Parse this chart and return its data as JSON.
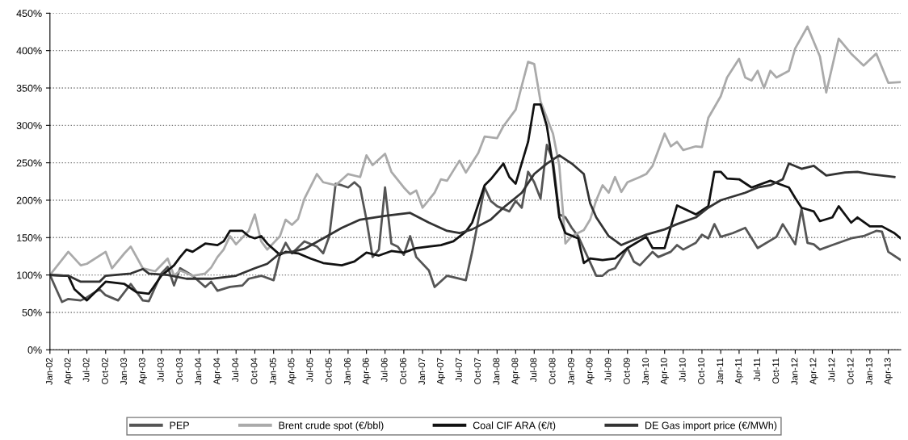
{
  "chart_data": {
    "type": "line",
    "ylim": [
      0,
      450
    ],
    "xlim": [
      "2002-01",
      "2013-06"
    ],
    "grid": "y",
    "legend": "bottom",
    "line_style": "solid",
    "marker": "none",
    "yticks": [
      {
        "value": 0,
        "label": "0%"
      },
      {
        "value": 50,
        "label": "50%"
      },
      {
        "value": 100,
        "label": "100%"
      },
      {
        "value": 150,
        "label": "150%"
      },
      {
        "value": 200,
        "label": "200%"
      },
      {
        "value": 250,
        "label": "250%"
      },
      {
        "value": 300,
        "label": "300%"
      },
      {
        "value": 350,
        "label": "350%"
      },
      {
        "value": 400,
        "label": "400%"
      },
      {
        "value": 450,
        "label": "450%"
      }
    ],
    "xticks": [
      {
        "value": "2002-01",
        "label": "Jan-02"
      },
      {
        "value": "2002-04",
        "label": "Apr-02"
      },
      {
        "value": "2002-07",
        "label": "Jul-02"
      },
      {
        "value": "2002-10",
        "label": "Oct-02"
      },
      {
        "value": "2003-01",
        "label": "Jan-03"
      },
      {
        "value": "2003-04",
        "label": "Apr-03"
      },
      {
        "value": "2003-07",
        "label": "Jul-03"
      },
      {
        "value": "2003-10",
        "label": "Oct-03"
      },
      {
        "value": "2004-01",
        "label": "Jan-04"
      },
      {
        "value": "2004-04",
        "label": "Apr-04"
      },
      {
        "value": "2004-07",
        "label": "Jul-04"
      },
      {
        "value": "2004-10",
        "label": "Oct-04"
      },
      {
        "value": "2005-01",
        "label": "Jan-05"
      },
      {
        "value": "2005-04",
        "label": "Apr-05"
      },
      {
        "value": "2005-07",
        "label": "Jul-05"
      },
      {
        "value": "2005-10",
        "label": "Oct-05"
      },
      {
        "value": "2006-01",
        "label": "Jan-06"
      },
      {
        "value": "2006-04",
        "label": "Apr-06"
      },
      {
        "value": "2006-07",
        "label": "Jul-06"
      },
      {
        "value": "2006-10",
        "label": "Oct-06"
      },
      {
        "value": "2007-01",
        "label": "Jan-07"
      },
      {
        "value": "2007-04",
        "label": "Apr-07"
      },
      {
        "value": "2007-07",
        "label": "Jul-07"
      },
      {
        "value": "2007-10",
        "label": "Oct-07"
      },
      {
        "value": "2008-01",
        "label": "Jan-08"
      },
      {
        "value": "2008-04",
        "label": "Apr-08"
      },
      {
        "value": "2008-07",
        "label": "Jul-08"
      },
      {
        "value": "2008-10",
        "label": "Oct-08"
      },
      {
        "value": "2009-01",
        "label": "Jan-09"
      },
      {
        "value": "2009-04",
        "label": "Apr-09"
      },
      {
        "value": "2009-07",
        "label": "Jul-09"
      },
      {
        "value": "2009-10",
        "label": "Oct-09"
      },
      {
        "value": "2010-01",
        "label": "Jan-10"
      },
      {
        "value": "2010-04",
        "label": "Apr-10"
      },
      {
        "value": "2010-07",
        "label": "Jul-10"
      },
      {
        "value": "2010-10",
        "label": "Oct-10"
      },
      {
        "value": "2011-01",
        "label": "Jan-11"
      },
      {
        "value": "2011-04",
        "label": "Apr-11"
      },
      {
        "value": "2011-07",
        "label": "Jul-11"
      },
      {
        "value": "2011-10",
        "label": "Oct-11"
      },
      {
        "value": "2012-01",
        "label": "Jan-12"
      },
      {
        "value": "2012-04",
        "label": "Apr-12"
      },
      {
        "value": "2012-07",
        "label": "Jul-12"
      },
      {
        "value": "2012-10",
        "label": "Oct-12"
      },
      {
        "value": "2013-01",
        "label": "Jan-13"
      },
      {
        "value": "2013-04",
        "label": "Apr-13"
      }
    ],
    "series": [
      {
        "name": "PEP",
        "color": "#555555",
        "x": [
          "2002-01",
          "2002-02",
          "2002-03",
          "2002-04",
          "2002-06",
          "2002-07",
          "2002-09",
          "2002-10",
          "2002-12",
          "2003-02",
          "2003-04",
          "2003-05",
          "2003-07",
          "2003-08",
          "2003-09",
          "2003-10",
          "2003-12",
          "2004-02",
          "2004-03",
          "2004-04",
          "2004-06",
          "2004-08",
          "2004-09",
          "2004-11",
          "2005-01",
          "2005-02",
          "2005-03",
          "2005-04",
          "2005-06",
          "2005-08",
          "2005-09",
          "2005-10",
          "2005-11",
          "2005-12",
          "2006-01",
          "2006-02",
          "2006-03",
          "2006-04",
          "2006-05",
          "2006-06",
          "2006-07",
          "2006-08",
          "2006-09",
          "2006-10",
          "2006-11",
          "2006-12",
          "2007-02",
          "2007-03",
          "2007-05",
          "2007-06",
          "2007-08",
          "2007-09",
          "2007-11",
          "2007-12",
          "2008-01",
          "2008-03",
          "2008-04",
          "2008-05",
          "2008-06",
          "2008-07",
          "2008-08",
          "2008-09",
          "2008-10",
          "2008-11",
          "2008-12",
          "2009-01",
          "2009-02",
          "2009-05",
          "2009-06",
          "2009-07",
          "2009-08",
          "2009-10",
          "2009-11",
          "2009-12",
          "2010-02",
          "2010-03",
          "2010-05",
          "2010-06",
          "2010-07",
          "2010-09",
          "2010-10",
          "2010-11",
          "2010-12",
          "2011-01",
          "2011-03",
          "2011-05",
          "2011-07",
          "2011-10",
          "2011-11",
          "2012-01",
          "2012-02",
          "2012-03",
          "2012-04",
          "2012-05",
          "2012-07",
          "2012-10",
          "2012-12",
          "2013-02",
          "2013-03",
          "2013-04",
          "2013-06"
        ],
        "values": [
          100,
          81,
          64,
          68,
          66,
          70,
          81,
          73,
          66,
          88,
          66,
          65,
          102,
          111,
          86,
          109,
          99,
          84,
          91,
          79,
          84,
          86,
          95,
          99,
          93,
          127,
          143,
          129,
          145,
          138,
          129,
          152,
          222,
          220,
          217,
          224,
          217,
          174,
          124,
          134,
          217,
          142,
          138,
          127,
          152,
          124,
          106,
          84,
          99,
          97,
          93,
          131,
          217,
          199,
          192,
          185,
          199,
          190,
          238,
          224,
          202,
          274,
          253,
          181,
          177,
          163,
          152,
          99,
          99,
          106,
          109,
          136,
          118,
          113,
          131,
          124,
          131,
          140,
          134,
          143,
          154,
          149,
          168,
          151,
          156,
          163,
          136,
          151,
          168,
          141,
          188,
          143,
          141,
          134,
          140,
          149,
          152,
          159,
          158,
          131,
          120
        ]
      },
      {
        "name": "Brent crude spot (€/bbl)",
        "color": "#aaaaaa",
        "x": [
          "2002-01",
          "2002-04",
          "2002-06",
          "2002-07",
          "2002-10",
          "2002-11",
          "2003-01",
          "2003-02",
          "2003-04",
          "2003-06",
          "2003-08",
          "2003-09",
          "2003-10",
          "2003-12",
          "2004-02",
          "2004-03",
          "2004-04",
          "2004-05",
          "2004-06",
          "2004-07",
          "2004-09",
          "2004-10",
          "2004-11",
          "2004-12",
          "2005-02",
          "2005-03",
          "2005-04",
          "2005-05",
          "2005-06",
          "2005-08",
          "2005-09",
          "2005-11",
          "2006-01",
          "2006-03",
          "2006-04",
          "2006-05",
          "2006-07",
          "2006-08",
          "2006-10",
          "2006-11",
          "2006-12",
          "2007-01",
          "2007-03",
          "2007-04",
          "2007-05",
          "2007-07",
          "2007-08",
          "2007-10",
          "2007-11",
          "2008-01",
          "2008-02",
          "2008-04",
          "2008-05",
          "2008-06",
          "2008-07",
          "2008-08",
          "2008-10",
          "2008-11",
          "2008-12",
          "2009-01",
          "2009-03",
          "2009-04",
          "2009-05",
          "2009-06",
          "2009-07",
          "2009-08",
          "2009-09",
          "2009-10",
          "2009-12",
          "2010-01",
          "2010-02",
          "2010-04",
          "2010-05",
          "2010-06",
          "2010-07",
          "2010-09",
          "2010-10",
          "2010-11",
          "2011-01",
          "2011-02",
          "2011-04",
          "2011-05",
          "2011-06",
          "2011-07",
          "2011-08",
          "2011-09",
          "2011-10",
          "2011-12",
          "2012-01",
          "2012-03",
          "2012-05",
          "2012-06",
          "2012-08",
          "2012-10",
          "2012-12",
          "2013-02",
          "2013-04",
          "2013-06"
        ],
        "values": [
          100,
          131,
          113,
          115,
          131,
          109,
          129,
          138,
          109,
          105,
          122,
          99,
          106,
          99,
          102,
          110,
          124,
          134,
          152,
          141,
          159,
          181,
          145,
          134,
          152,
          174,
          167,
          175,
          202,
          235,
          224,
          220,
          235,
          231,
          260,
          247,
          262,
          238,
          217,
          208,
          213,
          190,
          210,
          228,
          226,
          253,
          237,
          263,
          285,
          283,
          299,
          321,
          353,
          385,
          382,
          332,
          289,
          246,
          142,
          152,
          160,
          174,
          200,
          220,
          210,
          231,
          211,
          224,
          231,
          235,
          246,
          289,
          272,
          278,
          267,
          272,
          271,
          310,
          339,
          364,
          389,
          364,
          360,
          373,
          350,
          373,
          364,
          373,
          403,
          432,
          392,
          344,
          416,
          396,
          380,
          396,
          357,
          358
        ]
      },
      {
        "name": "Coal CIF ARA (€/t)",
        "color": "#111111",
        "x": [
          "2002-01",
          "2002-04",
          "2002-05",
          "2002-07",
          "2002-10",
          "2003-01",
          "2003-03",
          "2003-05",
          "2003-07",
          "2003-09",
          "2003-10",
          "2003-11",
          "2003-12",
          "2004-02",
          "2004-04",
          "2004-05",
          "2004-06",
          "2004-08",
          "2004-09",
          "2004-10",
          "2004-11",
          "2004-12",
          "2005-02",
          "2005-03",
          "2005-05",
          "2005-07",
          "2005-09",
          "2005-12",
          "2006-02",
          "2006-04",
          "2006-06",
          "2006-08",
          "2006-10",
          "2006-12",
          "2007-02",
          "2007-04",
          "2007-06",
          "2007-08",
          "2007-09",
          "2007-11",
          "2007-12",
          "2008-02",
          "2008-03",
          "2008-04",
          "2008-06",
          "2008-07",
          "2008-08",
          "2008-09",
          "2008-10",
          "2008-11",
          "2008-12",
          "2009-02",
          "2009-03",
          "2009-04",
          "2009-06",
          "2009-08",
          "2009-10",
          "2010-01",
          "2010-02",
          "2010-04",
          "2010-06",
          "2010-08",
          "2010-09",
          "2010-11",
          "2010-12",
          "2011-01",
          "2011-02",
          "2011-04",
          "2011-06",
          "2011-07",
          "2011-09",
          "2011-11",
          "2011-12",
          "2012-01",
          "2012-02",
          "2012-04",
          "2012-05",
          "2012-07",
          "2012-08",
          "2012-10",
          "2012-11",
          "2013-01",
          "2013-03",
          "2013-05",
          "2013-06"
        ],
        "values": [
          100,
          99,
          81,
          66,
          91,
          88,
          77,
          75,
          99,
          113,
          124,
          134,
          131,
          142,
          140,
          145,
          159,
          159,
          152,
          149,
          152,
          142,
          127,
          131,
          129,
          122,
          116,
          113,
          118,
          130,
          126,
          132,
          130,
          136,
          138,
          140,
          145,
          158,
          170,
          220,
          228,
          249,
          231,
          222,
          278,
          328,
          328,
          299,
          246,
          177,
          156,
          149,
          116,
          122,
          120,
          122,
          136,
          151,
          136,
          136,
          193,
          185,
          181,
          192,
          238,
          238,
          229,
          228,
          217,
          220,
          226,
          220,
          217,
          203,
          190,
          185,
          172,
          177,
          192,
          170,
          177,
          165,
          165,
          156,
          149
        ]
      },
      {
        "name": "DE Gas import price (€/MWh)",
        "color": "#333333",
        "x": [
          "2002-01",
          "2002-04",
          "2002-06",
          "2002-09",
          "2002-10",
          "2003-02",
          "2003-04",
          "2003-05",
          "2003-08",
          "2003-11",
          "2004-03",
          "2004-07",
          "2004-10",
          "2004-12",
          "2005-02",
          "2005-04",
          "2005-06",
          "2005-09",
          "2005-12",
          "2006-03",
          "2006-07",
          "2006-11",
          "2007-02",
          "2007-05",
          "2007-07",
          "2007-09",
          "2007-12",
          "2008-02",
          "2008-05",
          "2008-07",
          "2008-09",
          "2008-11",
          "2009-01",
          "2009-03",
          "2009-04",
          "2009-05",
          "2009-07",
          "2009-09",
          "2009-11",
          "2010-01",
          "2010-04",
          "2010-06",
          "2010-09",
          "2010-11",
          "2011-01",
          "2011-05",
          "2011-07",
          "2011-09",
          "2011-11",
          "2011-12",
          "2012-02",
          "2012-04",
          "2012-06",
          "2012-09",
          "2012-11",
          "2013-01",
          "2013-05"
        ],
        "values": [
          100,
          99,
          91,
          91,
          99,
          102,
          108,
          102,
          100,
          95,
          95,
          99,
          109,
          115,
          129,
          131,
          135,
          149,
          163,
          174,
          179,
          183,
          170,
          159,
          156,
          161,
          174,
          190,
          210,
          235,
          249,
          260,
          249,
          235,
          196,
          177,
          152,
          140,
          147,
          154,
          161,
          168,
          177,
          190,
          200,
          210,
          217,
          220,
          228,
          249,
          242,
          246,
          233,
          237,
          238,
          235,
          231
        ]
      }
    ]
  }
}
